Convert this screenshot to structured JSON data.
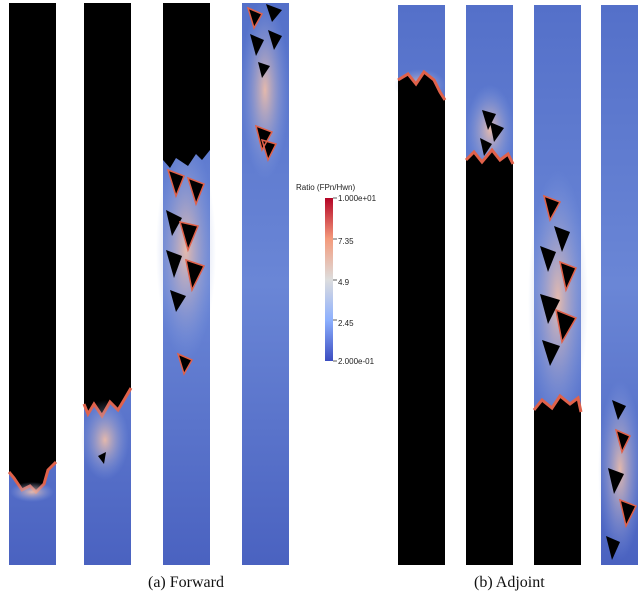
{
  "colorbar": {
    "title": "Ratio (FPn/Hwn)",
    "ticks": [
      "1.000e+01",
      "7.35",
      "4.9",
      "2.45",
      "2.000e-01"
    ],
    "min": 0.2,
    "max": 10,
    "colors": [
      "#3b4cc0",
      "#8db0fe",
      "#dddddd",
      "#f49a7b",
      "#b40426"
    ]
  },
  "captions": {
    "forward": "(a) Forward",
    "adjoint": "(b) Adjoint"
  },
  "colors": {
    "background_blue": "#4a66c4",
    "front_black": "#000000",
    "front_red": "#d9553f"
  }
}
